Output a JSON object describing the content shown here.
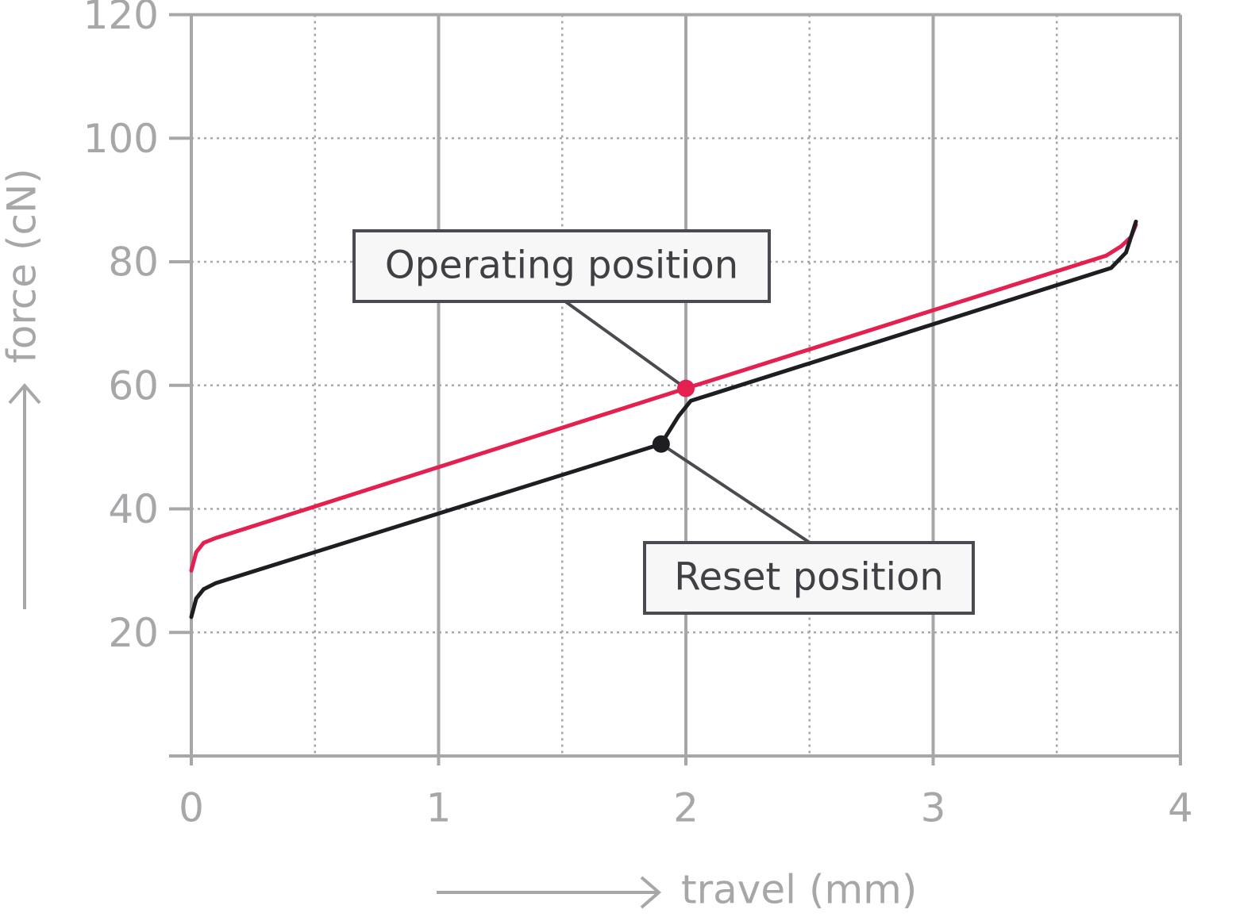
{
  "chart_data": {
    "type": "line",
    "xlabel": "travel (mm)",
    "ylabel": "force (cN)",
    "xlim": [
      0,
      4
    ],
    "ylim": [
      0,
      120
    ],
    "xticks": [
      0,
      1,
      2,
      3,
      4
    ],
    "yticks": [
      20,
      40,
      60,
      80,
      100,
      120
    ],
    "xminorticks": [
      0.5,
      1.5,
      2.5,
      3.5
    ],
    "grid": true,
    "series": [
      {
        "color": "#e3204f",
        "x": [
          0,
          0.02,
          0.05,
          0.1,
          2,
          3.7,
          3.76,
          3.8,
          3.82
        ],
        "values": [
          30,
          33,
          34.5,
          35.3,
          59.5,
          81,
          82.5,
          84,
          86
        ]
      },
      {
        "color": "#1e1e22",
        "x": [
          0,
          0.02,
          0.05,
          0.1,
          1.9,
          1.97,
          2.02,
          2.1,
          3.72,
          3.78,
          3.82
        ],
        "values": [
          22.5,
          25.5,
          27,
          28,
          50.5,
          55,
          57.5,
          58.5,
          79,
          81.5,
          86.5
        ]
      }
    ],
    "annotations": [
      {
        "text": "Operating position",
        "x": 2,
        "y": 59.5,
        "color": "#e3204f"
      },
      {
        "text": "Reset position",
        "x": 1.9,
        "y": 50.5,
        "color": "#1e1e22"
      }
    ]
  }
}
